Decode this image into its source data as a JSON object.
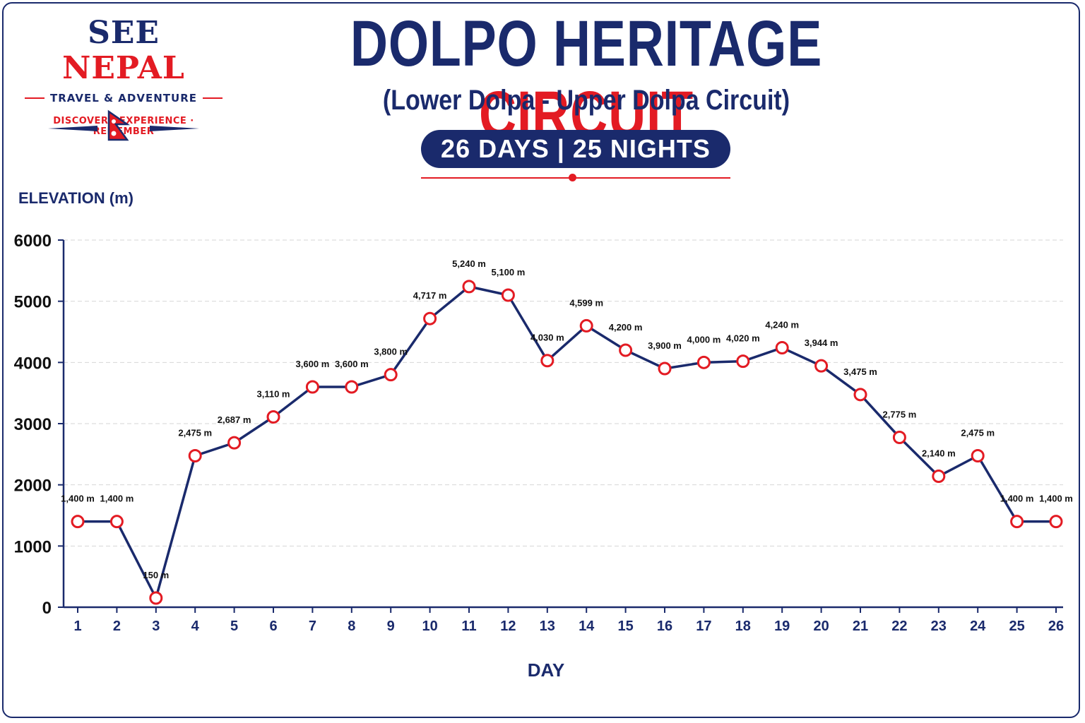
{
  "brand": {
    "name_part1": "SEE",
    "name_part2": "NEPAL",
    "tagline": "TRAVEL & ADVENTURE",
    "motto": "DISCOVER · EXPERIENCE · REMEMBER",
    "flag_icon": "nepal-flag-icon"
  },
  "header": {
    "title_part1": "DOLPO HERITAGE",
    "title_part2": "CIRCUIT",
    "subtitle": "(Lower Dolpa - Upper Dolpa Circuit)",
    "duration": "26 DAYS | 25 NIGHTS"
  },
  "colors": {
    "navy": "#1a2a6c",
    "red": "#e31b23"
  },
  "chart_data": {
    "type": "line",
    "xlabel": "DAY",
    "ylabel": "ELEVATION (m)",
    "ylim": [
      0,
      6000
    ],
    "yticks": [
      0,
      1000,
      2000,
      3000,
      4000,
      5000,
      6000
    ],
    "grid": true,
    "categories": [
      "1",
      "2",
      "3",
      "4",
      "5",
      "6",
      "7",
      "8",
      "9",
      "10",
      "11",
      "12",
      "13",
      "14",
      "15",
      "16",
      "17",
      "18",
      "19",
      "20",
      "21",
      "22",
      "23",
      "24",
      "25",
      "26"
    ],
    "series": [
      {
        "values": [
          1400,
          1400,
          150,
          2475,
          2687,
          3110,
          3600,
          3600,
          3800,
          4717,
          5240,
          5100,
          4030,
          4599,
          4200,
          3900,
          4000,
          4020,
          4240,
          3944,
          3475,
          2775,
          2140,
          2475,
          1400,
          1400
        ],
        "labels": [
          "1,400 m",
          "1,400 m",
          "150 m",
          "2,475 m",
          "2,687 m",
          "3,110 m",
          "3,600 m",
          "3,600 m",
          "3,800 m",
          "4,717 m",
          "5,240 m",
          "5,100 m",
          "4,030 m",
          "4,599 m",
          "4,200 m",
          "3,900 m",
          "4,000 m",
          "4,020 m",
          "4,240 m",
          "3,944 m",
          "3,475 m",
          "2,775 m",
          "2,140 m",
          "2,475 m",
          "1,400 m",
          "1,400 m"
        ]
      }
    ]
  }
}
